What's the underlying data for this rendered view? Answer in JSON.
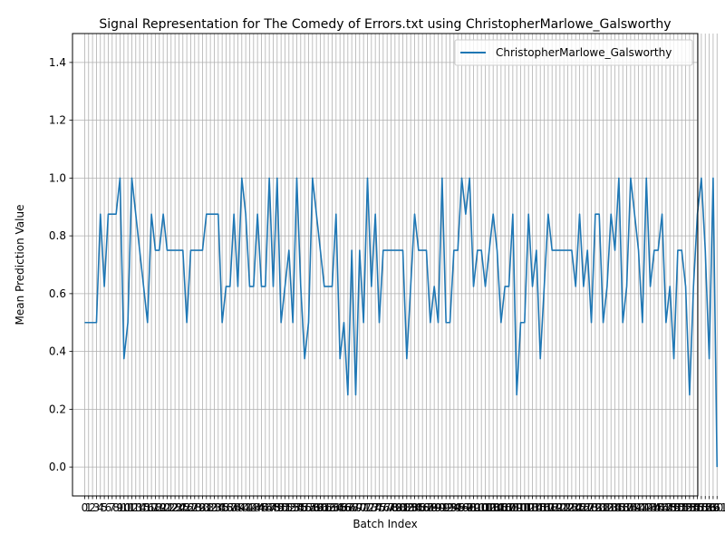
{
  "chart_data": {
    "type": "line",
    "title": "Signal Representation for The Comedy of Errors.txt using ChristopherMarlowe_Galsworthy",
    "xlabel": "Batch Index",
    "ylabel": "Mean Prediction Value",
    "xlim": [
      -3.1,
      156.1
    ],
    "ylim": [
      -0.1,
      1.5
    ],
    "yticks": [
      0.0,
      0.2,
      0.4,
      0.6,
      0.8,
      1.0,
      1.2,
      1.4
    ],
    "grid": true,
    "legend_position": "top-right",
    "series": [
      {
        "name": "ChristopherMarlowe_Galsworthy",
        "color": "#1f77b4",
        "x_start": 0,
        "values": [
          0.5,
          0.5,
          0.5,
          0.5,
          0.875,
          0.625,
          0.875,
          0.875,
          0.875,
          1.0,
          0.375,
          0.5,
          1.0,
          0.875,
          0.75,
          0.625,
          0.5,
          0.875,
          0.75,
          0.75,
          0.875,
          0.75,
          0.75,
          0.75,
          0.75,
          0.75,
          0.5,
          0.75,
          0.75,
          0.75,
          0.75,
          0.875,
          0.875,
          0.875,
          0.875,
          0.5,
          0.625,
          0.625,
          0.875,
          0.625,
          1.0,
          0.875,
          0.625,
          0.625,
          0.875,
          0.625,
          0.625,
          1.0,
          0.625,
          1.0,
          0.5,
          0.625,
          0.75,
          0.5,
          1.0,
          0.625,
          0.375,
          0.5,
          1.0,
          0.875,
          0.75,
          0.625,
          0.625,
          0.625,
          0.875,
          0.375,
          0.5,
          0.25,
          0.75,
          0.25,
          0.75,
          0.5,
          1.0,
          0.625,
          0.875,
          0.5,
          0.75,
          0.75,
          0.75,
          0.75,
          0.75,
          0.75,
          0.375,
          0.625,
          0.875,
          0.75,
          0.75,
          0.75,
          0.5,
          0.625,
          0.5,
          1.0,
          0.5,
          0.5,
          0.75,
          0.75,
          1.0,
          0.875,
          1.0,
          0.625,
          0.75,
          0.75,
          0.625,
          0.75,
          0.875,
          0.75,
          0.5,
          0.625,
          0.625,
          0.875,
          0.25,
          0.5,
          0.5,
          0.875,
          0.625,
          0.75,
          0.375,
          0.625,
          0.875,
          0.75,
          0.75,
          0.75,
          0.75,
          0.75,
          0.75,
          0.625,
          0.875,
          0.625,
          0.75,
          0.5,
          0.875,
          0.875,
          0.5,
          0.625,
          0.875,
          0.75,
          1.0,
          0.5,
          0.625,
          1.0,
          0.875,
          0.75,
          0.5,
          1.0,
          0.625,
          0.75,
          0.75,
          0.875,
          0.5,
          0.625,
          0.375,
          0.75,
          0.75,
          0.625,
          0.25,
          0.625,
          0.875,
          1.0,
          0.75,
          0.375,
          1.0,
          0.0
        ]
      }
    ]
  }
}
